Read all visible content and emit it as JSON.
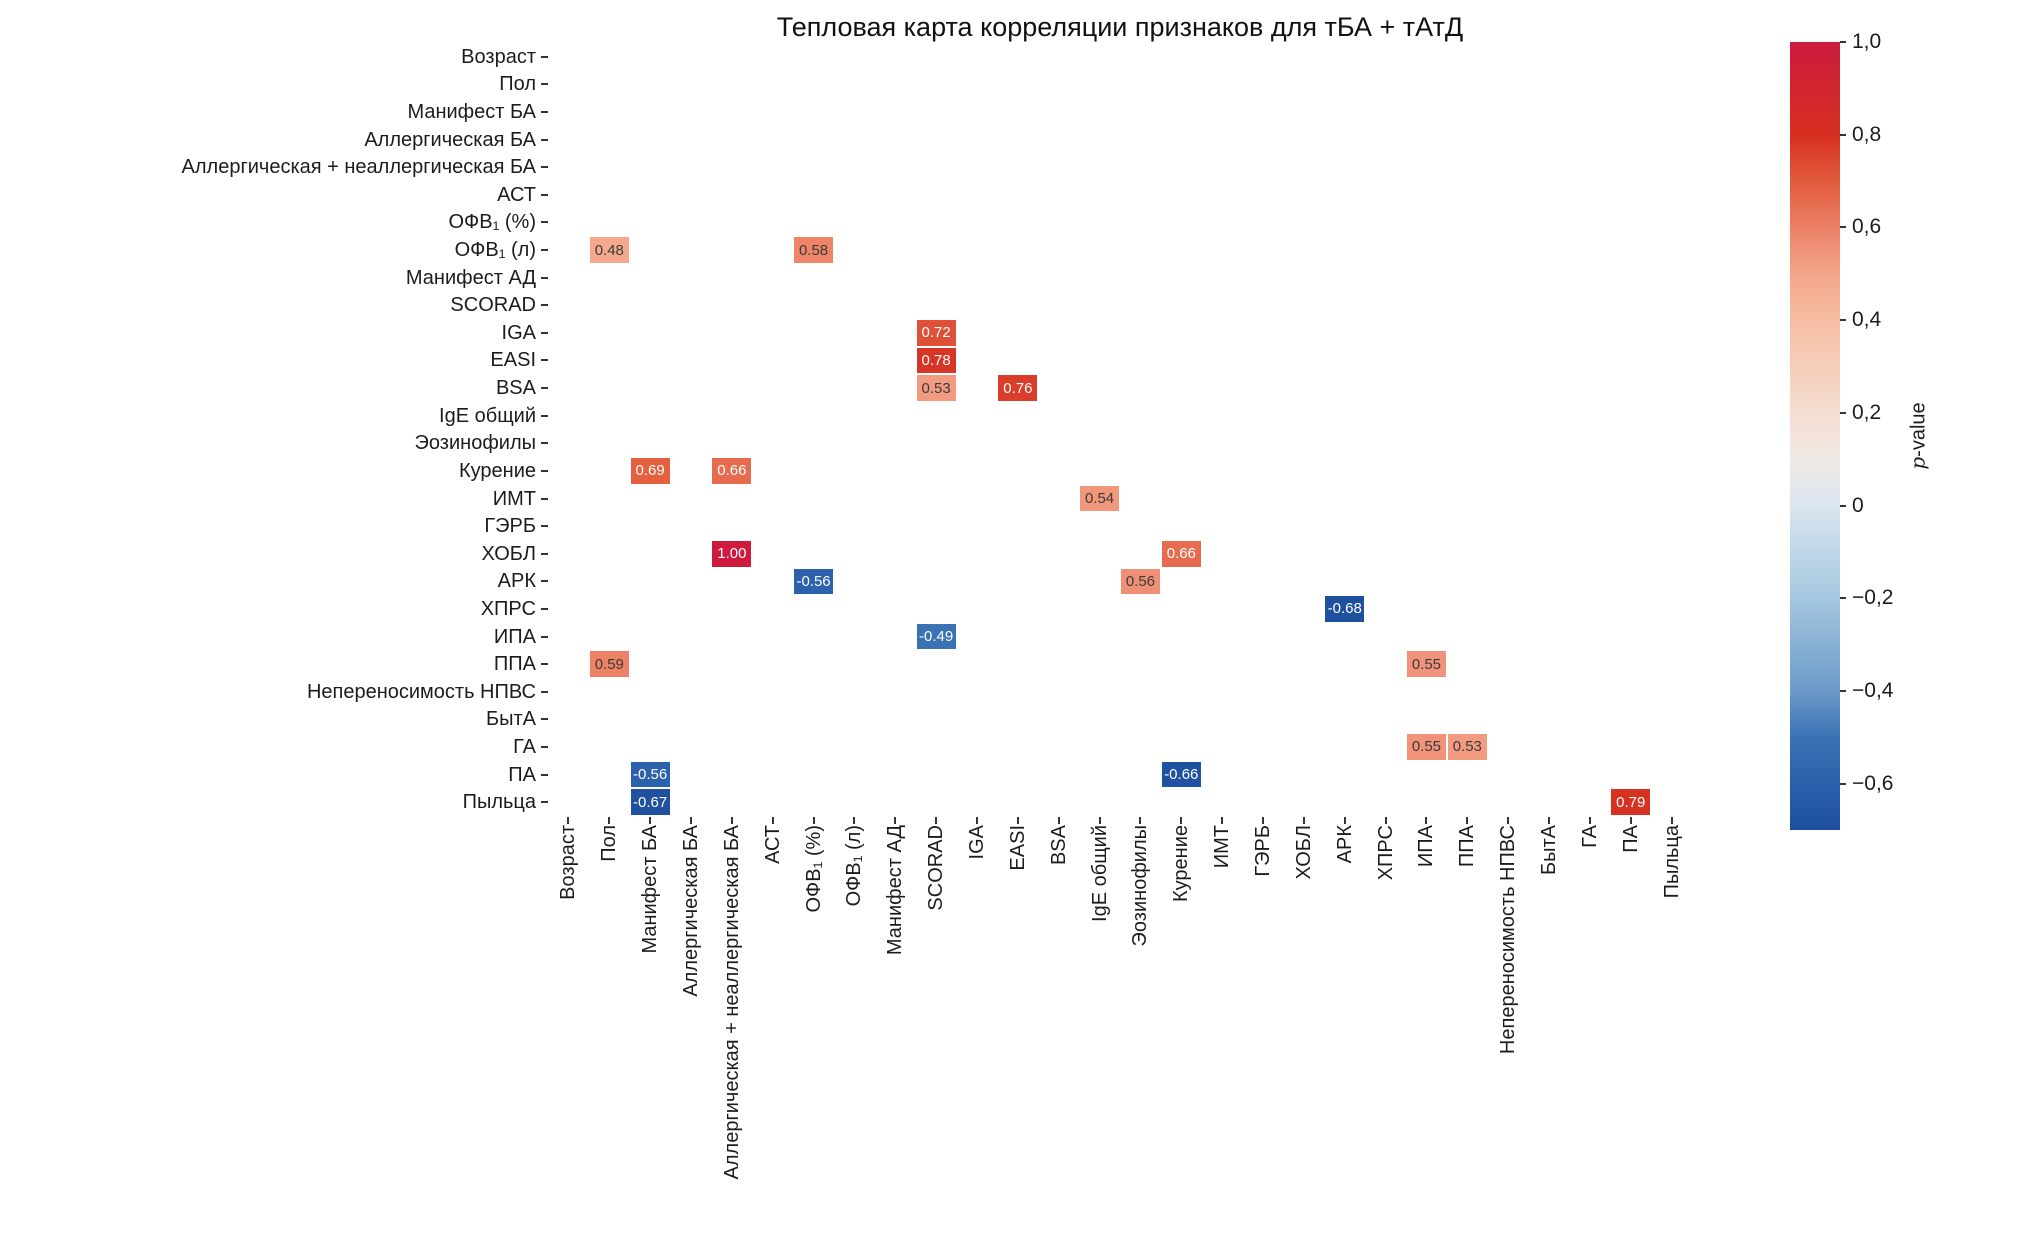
{
  "figure": {
    "background": "#ffffff"
  },
  "chart_data": {
    "type": "heatmap",
    "title": "Тепловая карта корреляции признаков для тБА + тАтД",
    "axes_note": "same 28 feature labels on both x (rotated 90) and y axes; only significant correlation cells are drawn, rest of grid is blank white",
    "categories": [
      "Возраст",
      "Пол",
      "Манифест БА",
      "Аллергическая БА",
      "Аллергическая + неаллергическая БА",
      "АСТ",
      "ОФВ₁ (%)",
      "ОФВ₁ (л)",
      "Манифест АД",
      "SCORAD",
      "IGA",
      "EASI",
      "BSA",
      "IgE общий",
      "Эозинофилы",
      "Курение",
      "ИМТ",
      "ГЭРБ",
      "ХОБЛ",
      "АРК",
      "ХПРС",
      "ИПА",
      "ППА",
      "Непереносимость НПВС",
      "БытА",
      "ГА",
      "ПА",
      "Пыльца"
    ],
    "cells": [
      {
        "row": 7,
        "col": 1,
        "row_label": "ОФВ₁ (л)",
        "col_label": "Пол",
        "value": "0.48",
        "color": "#f4a98e",
        "text": "dark"
      },
      {
        "row": 7,
        "col": 6,
        "row_label": "ОФВ₁ (л)",
        "col_label": "ОФВ₁ (%)",
        "value": "0.58",
        "color": "#ee8569",
        "text": "dark"
      },
      {
        "row": 10,
        "col": 9,
        "row_label": "IGA",
        "col_label": "SCORAD",
        "value": "0.72",
        "color": "#df5038",
        "text": "light"
      },
      {
        "row": 11,
        "col": 9,
        "row_label": "EASI",
        "col_label": "SCORAD",
        "value": "0.78",
        "color": "#d73525",
        "text": "light"
      },
      {
        "row": 12,
        "col": 9,
        "row_label": "BSA",
        "col_label": "SCORAD",
        "value": "0.53",
        "color": "#f29b80",
        "text": "dark"
      },
      {
        "row": 12,
        "col": 11,
        "row_label": "BSA",
        "col_label": "EASI",
        "value": "0.76",
        "color": "#da3e2a",
        "text": "light"
      },
      {
        "row": 15,
        "col": 2,
        "row_label": "Курение",
        "col_label": "Манифест БА",
        "value": "0.69",
        "color": "#e4603f",
        "text": "light"
      },
      {
        "row": 15,
        "col": 4,
        "row_label": "Курение",
        "col_label": "Аллергическая + неаллергическая БА",
        "value": "0.66",
        "color": "#e76c4f",
        "text": "light"
      },
      {
        "row": 16,
        "col": 13,
        "row_label": "ИМТ",
        "col_label": "IgE общий",
        "value": "0.54",
        "color": "#f1977c",
        "text": "dark"
      },
      {
        "row": 18,
        "col": 4,
        "row_label": "ХОБЛ",
        "col_label": "Аллергическая + неаллергическая БА",
        "value": "1.00",
        "color": "#cf1a3e",
        "text": "light"
      },
      {
        "row": 18,
        "col": 15,
        "row_label": "ХОБЛ",
        "col_label": "Курение",
        "value": "0.66",
        "color": "#e76c4f",
        "text": "light"
      },
      {
        "row": 19,
        "col": 6,
        "row_label": "АРК",
        "col_label": "ОФВ₁ (%)",
        "value": "-0.56",
        "color": "#2c62ab",
        "text": "light"
      },
      {
        "row": 19,
        "col": 14,
        "row_label": "АРК",
        "col_label": "Эозинофилы",
        "value": "0.56",
        "color": "#ef9076",
        "text": "dark"
      },
      {
        "row": 20,
        "col": 19,
        "row_label": "ХПРС",
        "col_label": "АРК",
        "value": "-0.68",
        "color": "#1e509f",
        "text": "light"
      },
      {
        "row": 21,
        "col": 9,
        "row_label": "ИПА",
        "col_label": "SCORAD",
        "value": "-0.49",
        "color": "#3b72b4",
        "text": "light"
      },
      {
        "row": 22,
        "col": 1,
        "row_label": "ППА",
        "col_label": "Пол",
        "value": "0.59",
        "color": "#ed8267",
        "text": "dark"
      },
      {
        "row": 22,
        "col": 21,
        "row_label": "ППА",
        "col_label": "ИПА",
        "value": "0.55",
        "color": "#f0937a",
        "text": "dark"
      },
      {
        "row": 25,
        "col": 21,
        "row_label": "ГА",
        "col_label": "ИПА",
        "value": "0.55",
        "color": "#f0937a",
        "text": "dark"
      },
      {
        "row": 25,
        "col": 22,
        "row_label": "ГА",
        "col_label": "ППА",
        "value": "0.53",
        "color": "#f29b80",
        "text": "dark"
      },
      {
        "row": 26,
        "col": 2,
        "row_label": "ПА",
        "col_label": "Манифест БА",
        "value": "-0.56",
        "color": "#2c62ab",
        "text": "light"
      },
      {
        "row": 26,
        "col": 15,
        "row_label": "ПА",
        "col_label": "Курение",
        "value": "-0.66",
        "color": "#2052a1",
        "text": "light"
      },
      {
        "row": 27,
        "col": 2,
        "row_label": "Пыльца",
        "col_label": "Манифест БА",
        "value": "-0.67",
        "color": "#1f51a0",
        "text": "light"
      },
      {
        "row": 27,
        "col": 26,
        "row_label": "Пыльца",
        "col_label": "ПА",
        "value": "0.79",
        "color": "#d63222",
        "text": "light"
      }
    ],
    "annotation_text_colors": {
      "dark": "#3b3b3b",
      "light": "#ffffff"
    },
    "colorbar": {
      "label_italic": "p",
      "label_rest": "-value",
      "range": [
        -0.7,
        1.0
      ],
      "tick_values": [
        1.0,
        0.8,
        0.6,
        0.4,
        0.2,
        0,
        -0.2,
        -0.4,
        -0.6
      ],
      "tick_labels": [
        "1,0",
        "0,8",
        "0,6",
        "0,4",
        "0,2",
        "0",
        "−0,2",
        "−0,4",
        "−0,6"
      ],
      "gradient_stops": [
        {
          "pos": 0.0,
          "color": "#cb1c3e"
        },
        {
          "pos": 0.118,
          "color": "#d62f21"
        },
        {
          "pos": 0.176,
          "color": "#e15a3c"
        },
        {
          "pos": 0.235,
          "color": "#ec8066"
        },
        {
          "pos": 0.294,
          "color": "#f3a58a"
        },
        {
          "pos": 0.353,
          "color": "#f6bda2"
        },
        {
          "pos": 0.471,
          "color": "#f5ded2"
        },
        {
          "pos": 0.529,
          "color": "#f1e9e4"
        },
        {
          "pos": 0.588,
          "color": "#dbe6f0"
        },
        {
          "pos": 0.706,
          "color": "#a5c7e0"
        },
        {
          "pos": 0.824,
          "color": "#6b9aca"
        },
        {
          "pos": 0.882,
          "color": "#3b72b4"
        },
        {
          "pos": 0.941,
          "color": "#2a61aa"
        },
        {
          "pos": 1.0,
          "color": "#1d4f9e"
        }
      ]
    }
  }
}
